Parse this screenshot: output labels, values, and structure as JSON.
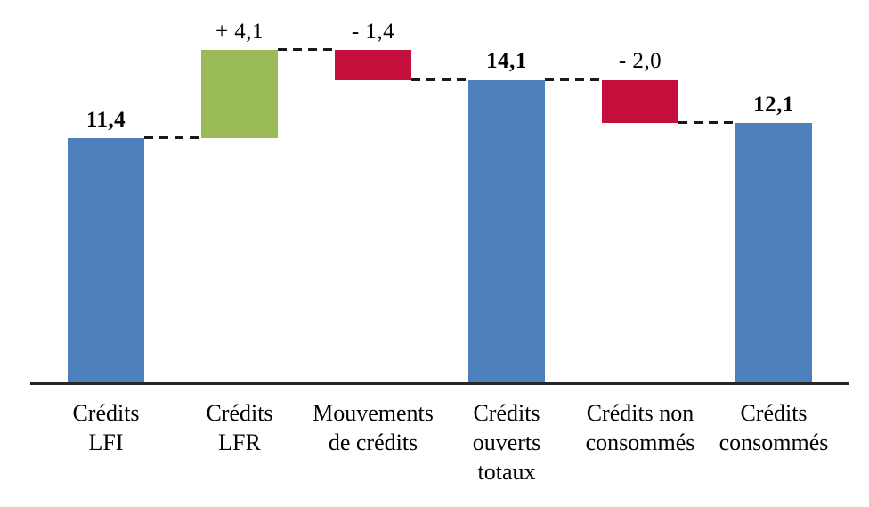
{
  "chart_data": {
    "type": "bar",
    "subtype": "waterfall",
    "title": "",
    "grid": false,
    "legend": false,
    "ylim": [
      0,
      16.6
    ],
    "categories": [
      "Crédits LFI",
      "Crédits LFR",
      "Mouvements de crédits",
      "Crédits ouverts totaux",
      "Crédits non consommés",
      "Crédits consommés"
    ],
    "bars": [
      {
        "category": "Crédits LFI",
        "category_lines": [
          "Crédits",
          "LFI"
        ],
        "label": "11,4",
        "value": 11.4,
        "start": 0,
        "end": 11.4,
        "role": "total",
        "label_bold": true
      },
      {
        "category": "Crédits LFR",
        "category_lines": [
          "Crédits",
          "LFR"
        ],
        "label": "+ 4,1",
        "value": 4.1,
        "start": 11.4,
        "end": 15.5,
        "role": "increase",
        "label_bold": false
      },
      {
        "category": "Mouvements de crédits",
        "category_lines": [
          "Mouvements",
          "de crédits"
        ],
        "label": "- 1,4",
        "value": -1.4,
        "start": 15.5,
        "end": 14.1,
        "role": "decrease",
        "label_bold": false
      },
      {
        "category": "Crédits ouverts totaux",
        "category_lines": [
          "Crédits",
          "ouverts",
          "totaux"
        ],
        "label": "14,1",
        "value": 14.1,
        "start": 0,
        "end": 14.1,
        "role": "total",
        "label_bold": true
      },
      {
        "category": "Crédits non consommés",
        "category_lines": [
          "Crédits non",
          "consommés"
        ],
        "label": "- 2,0",
        "value": -2.0,
        "start": 14.1,
        "end": 12.1,
        "role": "decrease",
        "label_bold": false
      },
      {
        "category": "Crédits consommés",
        "category_lines": [
          "Crédits",
          "consommés"
        ],
        "label": "12,1",
        "value": 12.1,
        "start": 0,
        "end": 12.1,
        "role": "total",
        "label_bold": true
      }
    ],
    "connectors": [
      {
        "from": 0,
        "to": 1,
        "level": 11.4
      },
      {
        "from": 1,
        "to": 2,
        "level": 15.5
      },
      {
        "from": 2,
        "to": 3,
        "level": 14.1
      },
      {
        "from": 3,
        "to": 4,
        "level": 14.1
      },
      {
        "from": 4,
        "to": 5,
        "level": 12.1
      }
    ],
    "colors": {
      "total": "#4E80BD",
      "increase": "#9BBB59",
      "decrease": "#C40E3C",
      "axis_line": "#262626",
      "connector": "#1a1a1a",
      "text": "#000000",
      "background": "#ffffff"
    }
  }
}
